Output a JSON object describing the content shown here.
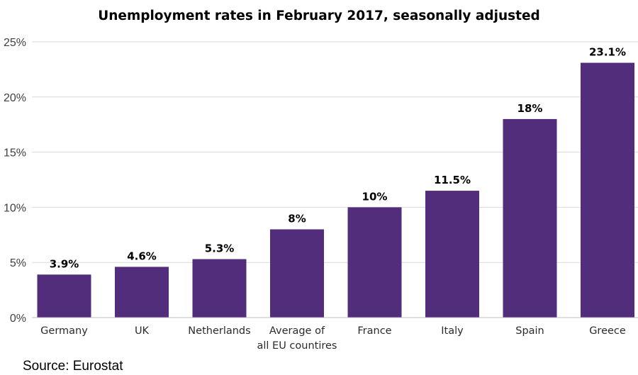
{
  "chart_data": {
    "type": "bar",
    "title": "Unemployment rates in February 2017, seasonally adjusted",
    "categories": [
      [
        "Germany"
      ],
      [
        "UK"
      ],
      [
        "Netherlands"
      ],
      [
        "Average of",
        "all EU countires"
      ],
      [
        "France"
      ],
      [
        "Italy"
      ],
      [
        "Spain"
      ],
      [
        "Greece"
      ]
    ],
    "values": [
      3.9,
      4.6,
      5.3,
      8,
      10,
      11.5,
      18,
      23.1
    ],
    "data_labels": [
      "3.9%",
      "4.6%",
      "5.3%",
      "8%",
      "10%",
      "11.5%",
      "18%",
      "23.1%"
    ],
    "yticks": [
      0,
      5,
      10,
      15,
      20,
      25
    ],
    "ytick_labels": [
      "0%",
      "5%",
      "10%",
      "15%",
      "20%",
      "25%"
    ],
    "ylim": [
      0,
      25
    ],
    "xlabel": "",
    "ylabel": "",
    "grid": true,
    "bar_color": "#512d7c",
    "source": "Source: Eurostat"
  }
}
